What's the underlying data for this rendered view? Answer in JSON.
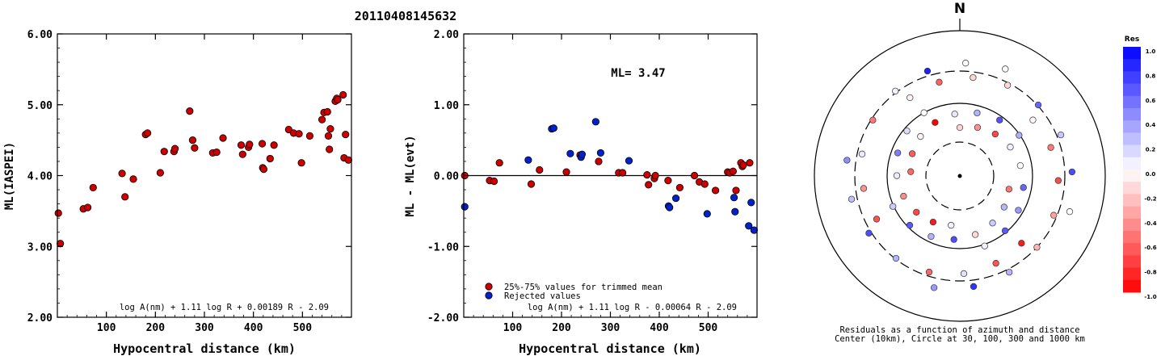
{
  "title": "20110408145632",
  "colors": {
    "red": "#cc0000",
    "blue": "#0022cc",
    "axis": "#000000"
  },
  "chart_data": [
    {
      "type": "scatter",
      "xlabel": "Hypocentral distance (km)",
      "ylabel": "ML(IASPEI)",
      "xlim": [
        0,
        600
      ],
      "ylim": [
        2.0,
        6.0
      ],
      "xticks": [
        "100",
        "200",
        "300",
        "400",
        "500"
      ],
      "yticks": [
        "2.00",
        "3.00",
        "4.00",
        "5.00",
        "6.00"
      ],
      "annotation": "log A(nm) + 1.11 log R + 0.00189 R - 2.09",
      "series": [
        {
          "color": "red",
          "points": [
            [
              2,
              3.47
            ],
            [
              6,
              3.04
            ],
            [
              53,
              3.53
            ],
            [
              62,
              3.55
            ],
            [
              73,
              3.83
            ],
            [
              132,
              4.03
            ],
            [
              138,
              3.7
            ],
            [
              155,
              3.95
            ],
            [
              180,
              4.58
            ],
            [
              184,
              4.6
            ],
            [
              210,
              4.04
            ],
            [
              218,
              4.34
            ],
            [
              238,
              4.34
            ],
            [
              240,
              4.38
            ],
            [
              270,
              4.91
            ],
            [
              276,
              4.5
            ],
            [
              280,
              4.39
            ],
            [
              317,
              4.32
            ],
            [
              325,
              4.33
            ],
            [
              338,
              4.53
            ],
            [
              375,
              4.43
            ],
            [
              378,
              4.3
            ],
            [
              390,
              4.4
            ],
            [
              392,
              4.44
            ],
            [
              418,
              4.45
            ],
            [
              419,
              4.11
            ],
            [
              421,
              4.09
            ],
            [
              434,
              4.24
            ],
            [
              442,
              4.43
            ],
            [
              472,
              4.65
            ],
            [
              482,
              4.6
            ],
            [
              493,
              4.59
            ],
            [
              498,
              4.18
            ],
            [
              515,
              4.56
            ],
            [
              540,
              4.79
            ],
            [
              544,
              4.89
            ],
            [
              551,
              4.9
            ],
            [
              553,
              4.56
            ],
            [
              555,
              4.37
            ],
            [
              557,
              4.66
            ],
            [
              567,
              5.05
            ],
            [
              570,
              5.09
            ],
            [
              572,
              5.07
            ],
            [
              583,
              5.14
            ],
            [
              585,
              4.25
            ],
            [
              588,
              4.58
            ],
            [
              594,
              4.22
            ]
          ]
        }
      ]
    },
    {
      "type": "scatter",
      "xlabel": "Hypocentral distance (km)",
      "ylabel": "ML - ML(evt)",
      "xlim": [
        0,
        600
      ],
      "ylim": [
        -2.0,
        2.0
      ],
      "xticks": [
        "100",
        "200",
        "300",
        "400",
        "500"
      ],
      "yticks": [
        "-2.00",
        "-1.00",
        "0.00",
        "1.00",
        "2.00"
      ],
      "ml_label": "ML= 3.47",
      "annotation": "log A(nm) + 1.11 log R - 0.00064 R - 2.09",
      "legend": [
        {
          "label": "25%-75% values for trimmed mean",
          "color": "red"
        },
        {
          "label": "Rejected values",
          "color": "blue"
        }
      ],
      "series": [
        {
          "color": "red",
          "points": [
            [
              2,
              0.0
            ],
            [
              53,
              -0.07
            ],
            [
              62,
              -0.08
            ],
            [
              73,
              0.18
            ],
            [
              138,
              -0.12
            ],
            [
              155,
              0.08
            ],
            [
              210,
              0.05
            ],
            [
              238,
              0.29
            ],
            [
              276,
              0.2
            ],
            [
              317,
              0.04
            ],
            [
              325,
              0.04
            ],
            [
              375,
              0.01
            ],
            [
              378,
              -0.13
            ],
            [
              390,
              -0.04
            ],
            [
              392,
              0.0
            ],
            [
              418,
              -0.07
            ],
            [
              442,
              -0.17
            ],
            [
              472,
              0.0
            ],
            [
              482,
              -0.09
            ],
            [
              493,
              -0.12
            ],
            [
              515,
              -0.21
            ],
            [
              540,
              0.05
            ],
            [
              544,
              0.04
            ],
            [
              551,
              0.06
            ],
            [
              557,
              -0.21
            ],
            [
              567,
              0.18
            ],
            [
              570,
              0.13
            ],
            [
              572,
              0.15
            ],
            [
              585,
              0.18
            ]
          ]
        },
        {
          "color": "blue",
          "points": [
            [
              2,
              -0.44
            ],
            [
              132,
              0.22
            ],
            [
              180,
              0.66
            ],
            [
              184,
              0.67
            ],
            [
              218,
              0.31
            ],
            [
              240,
              0.26
            ],
            [
              242,
              0.3
            ],
            [
              270,
              0.76
            ],
            [
              280,
              0.32
            ],
            [
              338,
              0.21
            ],
            [
              419,
              -0.43
            ],
            [
              421,
              -0.45
            ],
            [
              434,
              -0.32
            ],
            [
              498,
              -0.54
            ],
            [
              553,
              -0.31
            ],
            [
              555,
              -0.51
            ],
            [
              583,
              -0.71
            ],
            [
              588,
              -0.38
            ],
            [
              594,
              -0.77
            ]
          ]
        }
      ]
    },
    {
      "type": "polar-scatter",
      "north_label": "N",
      "caption": [
        "Residuals as a function of azimuth and distance",
        "Center (10km), Circle at 30, 100, 300 and 1000 km"
      ],
      "rings_km": [
        10,
        30,
        100,
        300,
        1000
      ],
      "colorbar": {
        "title": "Res",
        "ticks": [
          "1.0",
          "0.8",
          "0.6",
          "0.4",
          "0.2",
          "0.0",
          "-0.2",
          "-0.4",
          "-0.6",
          "-0.8",
          "-1.0"
        ],
        "range": [
          -1.0,
          1.0
        ]
      },
      "stations": [
        [
          -0.18,
          0.0
        ],
        [
          -0.9,
          0.1
        ],
        [
          -0.6,
          -0.19
        ],
        [
          -0.03,
          -0.22
        ],
        [
          0.05,
          -0.25
        ],
        [
          -0.05,
          -0.12
        ],
        [
          -0.54,
          -0.12
        ],
        [
          -0.68,
          0.1
        ],
        [
          -0.43,
          -0.09
        ],
        [
          -0.68,
          -0.24
        ],
        [
          -0.64,
          -0.28
        ],
        [
          -0.52,
          0.08
        ],
        [
          -0.9,
          0.09
        ],
        [
          -0.62,
          0.22
        ],
        [
          0.28,
          0.24
        ],
        [
          -0.43,
          -0.05
        ],
        [
          -0.73,
          -0.2
        ],
        [
          0.12,
          -0.38
        ],
        [
          -0.05,
          -0.46
        ],
        [
          -0.71,
          0.07
        ],
        [
          -0.73,
          -0.09
        ],
        [
          -0.16,
          -0.1
        ],
        [
          0.2,
          0.34
        ],
        [
          0.08,
          0.13
        ],
        [
          0.05,
          -0.4
        ],
        [
          -0.6,
          -0.21
        ],
        [
          -1.0,
          -0.3
        ],
        [
          -0.38,
          0.15
        ],
        [
          -0.45,
          0.2
        ],
        [
          -0.15,
          -0.21
        ],
        [
          -0.15,
          0.22
        ],
        [
          -0.54,
          -0.26
        ],
        [
          0.0,
          0.07
        ],
        [
          0.3,
          -0.28
        ],
        [
          0.1,
          0.26
        ],
        [
          -0.3,
          0.34
        ],
        [
          0.08,
          0.31
        ],
        [
          0.6,
          -0.44
        ],
        [
          0.7,
          -0.3
        ],
        [
          0.05,
          0.15
        ],
        [
          0.6,
          0.02
        ],
        [
          0.7,
          0.38
        ],
        [
          0.3,
          -0.07
        ],
        [
          0.3,
          -0.06
        ],
        [
          0.5,
          -0.18
        ],
        [
          0.22,
          -0.24
        ],
        [
          0.3,
          0.33
        ],
        [
          0.88,
          -0.31
        ],
        [
          0.4,
          0.29
        ],
        [
          0.25,
          0.11
        ],
        [
          0.68,
          0.21
        ],
        [
          0.8,
          0.23
        ],
        [
          0.13,
          0.34
        ],
        [
          0.7,
          -0.28
        ],
        [
          0.65,
          -0.2
        ],
        [
          0.0,
          0.07
        ],
        [
          0.65,
          0.24
        ],
        [
          0.45,
          -0.26
        ],
        [
          0.32,
          0.32
        ],
        [
          0.4,
          -0.24
        ],
        [
          0.0,
          0.0
        ],
        [
          0.0,
          0.0
        ],
        [
          0.2,
          0.27
        ],
        [
          0.02,
          -0.08
        ],
        [
          0.05,
          -0.1
        ]
      ]
    }
  ]
}
